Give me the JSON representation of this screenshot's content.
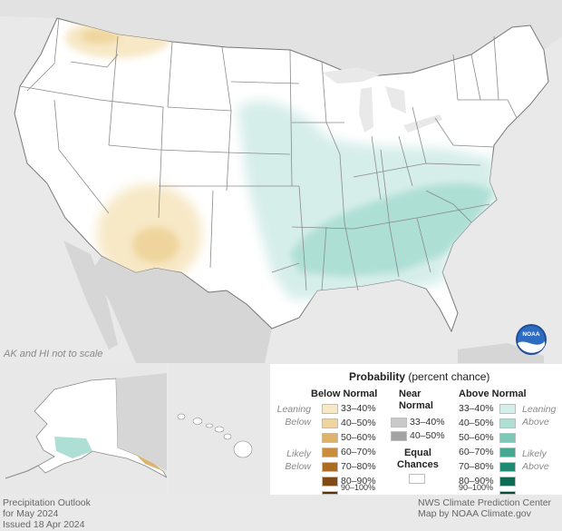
{
  "map": {
    "scale_note": "AK and HI not to scale",
    "logo_text": "NOAA",
    "colors": {
      "land": "#ffffff",
      "ocean": "#e9e9e9",
      "borders": "#7a7a7a",
      "neighbor_land": "#d4d4d4"
    }
  },
  "legend": {
    "title": "Probability",
    "title_suffix": "(percent chance)",
    "below": {
      "header": "Below Normal",
      "leaning_line1": "Leaning",
      "leaning_line2": "Below",
      "likely_line1": "Likely",
      "likely_line2": "Below",
      "items": [
        {
          "label": "33–40%",
          "color": "#f7e8c6"
        },
        {
          "label": "40–50%",
          "color": "#efd59d"
        },
        {
          "label": "50–60%",
          "color": "#ddb36c"
        },
        {
          "label": "60–70%",
          "color": "#c98d3b"
        },
        {
          "label": "70–80%",
          "color": "#ab6b22"
        },
        {
          "label": "80–90%",
          "color": "#7f4a15"
        },
        {
          "label": "90–100%",
          "color": "#5c3309"
        }
      ]
    },
    "near": {
      "header_line1": "Near",
      "header_line2": "Normal",
      "items": [
        {
          "label": "33–40%",
          "color": "#c9c9c9"
        },
        {
          "label": "40–50%",
          "color": "#a3a3a3"
        }
      ]
    },
    "equal": {
      "line1": "Equal",
      "line2": "Chances",
      "color": "#ffffff"
    },
    "above": {
      "header": "Above Normal",
      "leaning_line1": "Leaning",
      "leaning_line2": "Above",
      "likely_line1": "Likely",
      "likely_line2": "Above",
      "items": [
        {
          "label": "33–40%",
          "color": "#d6eeea"
        },
        {
          "label": "40–50%",
          "color": "#aedfd5"
        },
        {
          "label": "50–60%",
          "color": "#7bc8b8"
        },
        {
          "label": "60–70%",
          "color": "#45a892"
        },
        {
          "label": "70–80%",
          "color": "#1f8a73"
        },
        {
          "label": "80–90%",
          "color": "#0f6b56"
        },
        {
          "label": "90–100%",
          "color": "#084d3c"
        }
      ]
    }
  },
  "footer": {
    "left_line1": "Precipitation Outlook",
    "left_line2": "for May 2024",
    "left_line3": "Issued 18 Apr 2024",
    "right_line1": "NWS Climate Prediction Center",
    "right_line2": "Map by NOAA Climate.gov"
  }
}
